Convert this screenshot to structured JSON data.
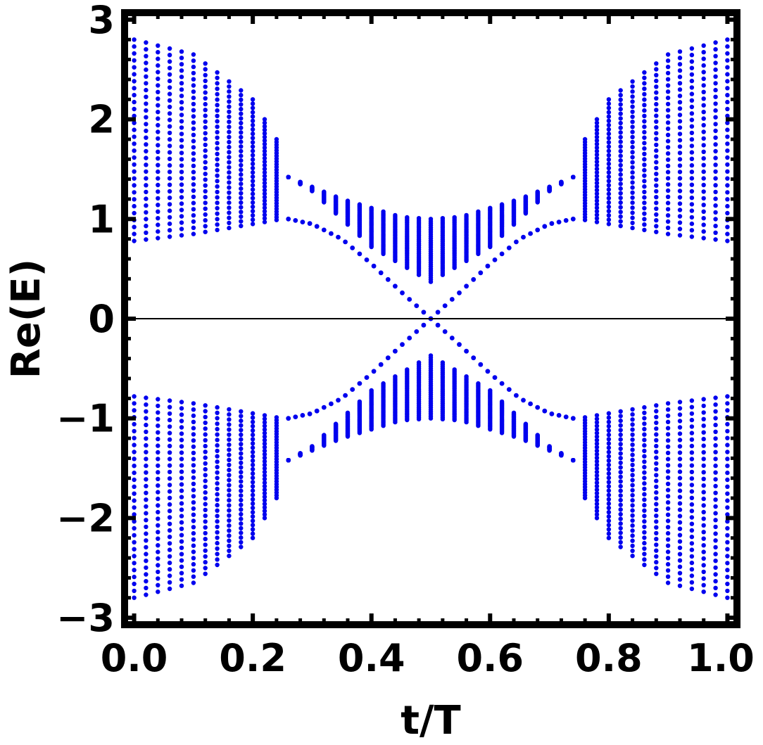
{
  "chart_data": {
    "type": "scatter",
    "title": "",
    "xlabel": "t/T",
    "ylabel": "Re(E)",
    "xlim": [
      0,
      1
    ],
    "ylim": [
      -3.07,
      3.07
    ],
    "x_ticks": [
      0.0,
      0.2,
      0.4,
      0.6,
      0.8,
      1.0
    ],
    "x_tick_labels": [
      "0.0",
      "0.2",
      "0.4",
      "0.6",
      "0.8",
      "1.0"
    ],
    "y_ticks": [
      -3,
      -2,
      -1,
      0,
      1,
      2,
      3
    ],
    "y_tick_labels": [
      "−3",
      "−2",
      "−1",
      "0",
      "1",
      "2",
      "3"
    ],
    "zero_line": true,
    "grid": false,
    "legend": "none",
    "marker_color": "#0000ee",
    "bulk_bands": {
      "description": "continuum of levels",
      "t_samples": 50,
      "levels_per_band": 30,
      "outer_edge": [
        [
          0.0,
          2.8
        ],
        [
          0.1,
          2.65
        ],
        [
          0.2,
          2.2
        ],
        [
          0.25,
          1.7
        ],
        [
          0.26,
          1.42
        ],
        [
          0.35,
          1.2
        ],
        [
          0.45,
          1.02
        ],
        [
          0.5,
          1.0
        ],
        [
          0.55,
          1.02
        ],
        [
          0.65,
          1.2
        ],
        [
          0.74,
          1.42
        ],
        [
          0.75,
          1.7
        ],
        [
          0.8,
          2.2
        ],
        [
          0.9,
          2.65
        ],
        [
          1.0,
          2.8
        ]
      ],
      "inner_edge": [
        [
          0.0,
          0.78
        ],
        [
          0.1,
          0.85
        ],
        [
          0.2,
          0.95
        ],
        [
          0.25,
          1.0
        ],
        [
          0.26,
          1.42
        ],
        [
          0.3,
          1.28
        ],
        [
          0.4,
          0.72
        ],
        [
          0.5,
          0.37
        ],
        [
          0.6,
          0.72
        ],
        [
          0.7,
          1.28
        ],
        [
          0.74,
          1.42
        ],
        [
          0.75,
          1.0
        ],
        [
          0.8,
          0.95
        ],
        [
          0.9,
          0.85
        ],
        [
          1.0,
          0.78
        ]
      ]
    },
    "edge_states": {
      "description": "in-gap levels crossing at t/T = 0.5",
      "points": [
        [
          0.26,
          1.0
        ],
        [
          0.3,
          0.95
        ],
        [
          0.35,
          0.8
        ],
        [
          0.4,
          0.55
        ],
        [
          0.45,
          0.27
        ],
        [
          0.5,
          0.0
        ],
        [
          0.55,
          -0.27
        ],
        [
          0.6,
          -0.55
        ],
        [
          0.65,
          -0.8
        ],
        [
          0.7,
          -0.95
        ],
        [
          0.74,
          -1.0
        ]
      ],
      "symmetric_copy": "mirror in E"
    }
  }
}
